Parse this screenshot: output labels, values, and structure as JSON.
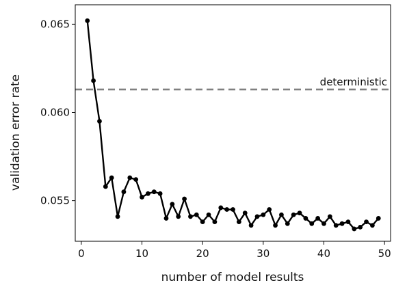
{
  "chart_data": {
    "type": "line",
    "xlabel": "number of model results",
    "ylabel": "validation error rate",
    "xlim": [
      -1,
      51
    ],
    "ylim": [
      0.0527,
      0.0661
    ],
    "xticks": [
      0,
      10,
      20,
      30,
      40,
      50
    ],
    "xtick_labels": [
      "0",
      "10",
      "20",
      "30",
      "40",
      "50"
    ],
    "yticks": [
      0.055,
      0.06,
      0.065
    ],
    "ytick_labels": [
      "0.055",
      "0.060",
      "0.065"
    ],
    "grid": false,
    "series": [
      {
        "color": "#000000",
        "marker": "circle",
        "x": [
          1,
          2,
          3,
          4,
          5,
          6,
          7,
          8,
          9,
          10,
          11,
          12,
          13,
          14,
          15,
          16,
          17,
          18,
          19,
          20,
          21,
          22,
          23,
          24,
          25,
          26,
          27,
          28,
          29,
          30,
          31,
          32,
          33,
          34,
          35,
          36,
          37,
          38,
          39,
          40,
          41,
          42,
          43,
          44,
          45,
          46,
          47,
          48,
          49
        ],
        "y": [
          0.0652,
          0.0618,
          0.0595,
          0.0558,
          0.0563,
          0.0541,
          0.0555,
          0.0563,
          0.0562,
          0.0552,
          0.0554,
          0.0555,
          0.0554,
          0.054,
          0.0548,
          0.0541,
          0.0551,
          0.0541,
          0.0542,
          0.0538,
          0.0542,
          0.0538,
          0.0546,
          0.0545,
          0.0545,
          0.0538,
          0.0543,
          0.0536,
          0.0541,
          0.0542,
          0.0545,
          0.0536,
          0.0542,
          0.0537,
          0.0542,
          0.0543,
          0.054,
          0.0537,
          0.054,
          0.0537,
          0.0541,
          0.0536,
          0.0537,
          0.0538,
          0.0534,
          0.0535,
          0.0538,
          0.0536,
          0.054
        ]
      }
    ],
    "reference_line": {
      "y": 0.0613,
      "label": "deterministic",
      "color": "#808080",
      "style": "dashed"
    }
  }
}
